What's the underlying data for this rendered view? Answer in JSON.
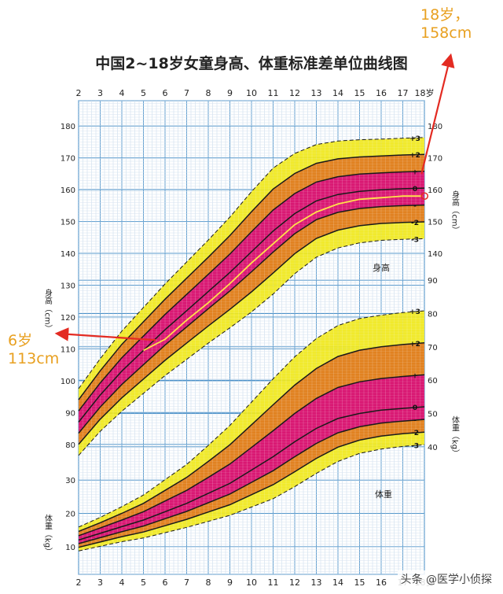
{
  "chart_data": {
    "type": "line",
    "title": "中国2~18岁女童身高、体重标准差单位曲线图",
    "x_ticks": [
      "2",
      "3",
      "4",
      "5",
      "6",
      "7",
      "8",
      "9",
      "10",
      "11",
      "12",
      "13",
      "14",
      "15",
      "16",
      "17",
      "18岁"
    ],
    "x_range": [
      2,
      18
    ],
    "height_axis": {
      "label": "身高（cm）",
      "ticks": [
        "80",
        "90",
        "100",
        "110",
        "120",
        "130",
        "140",
        "150",
        "160",
        "170",
        "180"
      ],
      "range": [
        75,
        185
      ],
      "section_label": "身高"
    },
    "weight_axis": {
      "label": "体重（kg）",
      "ticks_low": [
        "10",
        "20",
        "30"
      ],
      "ticks_high": [
        "40",
        "50",
        "60",
        "70",
        "80",
        "90"
      ],
      "range": [
        5,
        95
      ],
      "section_label": "体重"
    },
    "sd_labels": [
      "+3",
      "+2",
      "+",
      "0",
      "-",
      "-2",
      "-3"
    ],
    "sd_levels": [
      3,
      2,
      1,
      0,
      -1,
      -2,
      -3
    ],
    "band_colors": {
      "outer": "#f0e81c",
      "middle": "#e07a20",
      "inner": "#d8107a"
    },
    "height_sd": {
      "ages": [
        2,
        3,
        4,
        5,
        6,
        7,
        8,
        9,
        10,
        11,
        12,
        13,
        14,
        15,
        16,
        17,
        18
      ],
      "median": [
        87,
        95.5,
        103,
        109.5,
        116,
        122,
        128,
        134,
        140.5,
        147,
        152.5,
        156.5,
        158.5,
        159.5,
        160,
        160.3,
        160.5
      ],
      "sd": [
        3.5,
        3.8,
        4.2,
        4.5,
        4.8,
        5.1,
        5.4,
        5.8,
        6.3,
        6.6,
        6.3,
        5.9,
        5.6,
        5.4,
        5.3,
        5.3,
        5.3
      ]
    },
    "weight_sd": {
      "ages": [
        2,
        3,
        4,
        5,
        6,
        7,
        8,
        9,
        10,
        11,
        12,
        13,
        14,
        15,
        16,
        17,
        18
      ],
      "median": [
        12,
        14,
        16,
        18,
        20.5,
        23,
        26,
        29,
        33,
        37,
        41.5,
        45.5,
        48.5,
        50,
        51,
        51.5,
        52
      ],
      "sd_plus": [
        1.3,
        1.6,
        2.0,
        2.5,
        3.2,
        3.9,
        4.8,
        5.8,
        6.8,
        7.8,
        8.5,
        9.0,
        9.3,
        9.5,
        9.5,
        9.6,
        9.6
      ],
      "sd_minus": [
        1.1,
        1.3,
        1.5,
        1.8,
        2.1,
        2.4,
        2.8,
        3.2,
        3.7,
        4.2,
        4.5,
        4.5,
        4.3,
        4.0,
        3.9,
        3.8,
        3.8
      ]
    },
    "child_height": {
      "name": "",
      "color": "#ffe14a",
      "ages": [
        5,
        6,
        7,
        8,
        9,
        10,
        11,
        12,
        13,
        14,
        15,
        16,
        17,
        17.9
      ],
      "values": [
        109.5,
        113,
        119,
        124.5,
        130.5,
        137,
        143,
        149,
        153,
        155.5,
        157,
        157.5,
        158,
        158
      ]
    },
    "annotations": [
      {
        "text_line1": "18岁，",
        "text_line2": "158cm",
        "target_age": 17.9,
        "target_value": 158
      },
      {
        "text_line1": "6岁",
        "text_line2": "113cm",
        "target_age": 6,
        "target_value": 113
      }
    ]
  },
  "watermark": "头条 @医学小侦探"
}
